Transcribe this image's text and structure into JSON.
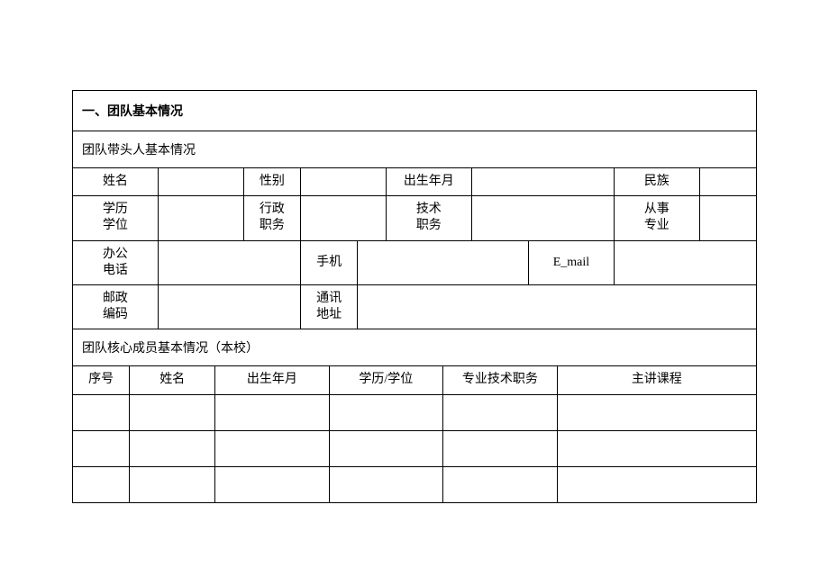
{
  "section1": {
    "title": "一、团队基本情况",
    "leader": {
      "heading": "团队带头人基本情况",
      "labels": {
        "name": "姓名",
        "gender": "性别",
        "birth": "出生年月",
        "ethnicity": "民族",
        "education": "学历\n学位",
        "admin_position": "行政\n职务",
        "tech_position": "技术\n职务",
        "field": "从事\n专业",
        "office_phone": "办公\n电话",
        "mobile": "手机",
        "email": "E_mail",
        "postal_code": "邮政\n编码",
        "address": "通讯\n地址"
      },
      "values": {
        "name": "",
        "gender": "",
        "birth": "",
        "ethnicity": "",
        "education": "",
        "admin_position": "",
        "tech_position": "",
        "field": "",
        "office_phone": "",
        "mobile": "",
        "email": "",
        "postal_code": "",
        "address": ""
      }
    },
    "members": {
      "heading": "团队核心成员基本情况（本校）",
      "columns": {
        "seq": "序号",
        "name": "姓名",
        "birth": "出生年月",
        "education": "学历/学位",
        "title": "专业技术职务",
        "course": "主讲课程"
      },
      "rows": [
        {
          "seq": "",
          "name": "",
          "birth": "",
          "education": "",
          "title": "",
          "course": ""
        },
        {
          "seq": "",
          "name": "",
          "birth": "",
          "education": "",
          "title": "",
          "course": ""
        },
        {
          "seq": "",
          "name": "",
          "birth": "",
          "education": "",
          "title": "",
          "course": ""
        }
      ]
    }
  }
}
